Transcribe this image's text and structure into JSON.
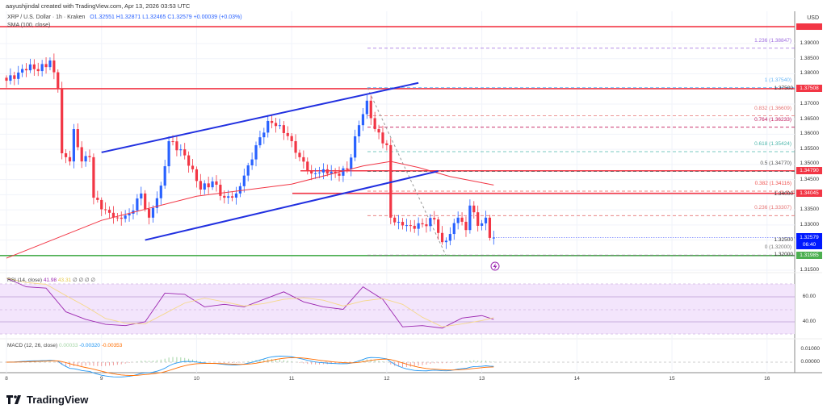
{
  "header": {
    "credit": "aayushjindal created with TradingView.com, Apr 13, 2026 03:53 UTC",
    "symbol_line": "XRP / U.S. Dollar · 1h · Kraken",
    "ohlc": "O1.32551  H1.32871  L1.32465  C1.32579  +0.00039 (+0.03%)",
    "sma_label": "SMA (100, close)"
  },
  "price_axis": {
    "currency": "USD",
    "ticks": [
      "1.39000",
      "1.38500",
      "1.38000",
      "1.37500",
      "1.37000",
      "1.36500",
      "1.36000",
      "1.35500",
      "1.35000",
      "1.34500",
      "1.34000",
      "1.33500",
      "1.33000",
      "1.32500",
      "1.32000",
      "1.31500"
    ],
    "tags": {
      "resistance_1": "1.37508",
      "resistance_2": "1.34790",
      "resistance_3": "1.34045",
      "support": "1.31985",
      "current_price": "1.32579",
      "countdown": "06:40"
    }
  },
  "time_axis": {
    "ticks": [
      "8",
      "9",
      "10",
      "11",
      "12",
      "13",
      "14",
      "15",
      "16"
    ]
  },
  "fib_levels": [
    {
      "label": "1.236 (1.38847)",
      "price": 1.38847,
      "color": "#9c6ade"
    },
    {
      "label": "1 (1.37540)",
      "price": 1.3754,
      "color": "#64b5f6"
    },
    {
      "label": "0.832 (1.36609)",
      "price": 1.36609,
      "color": "#e57373"
    },
    {
      "label": "0.764 (1.36233)",
      "price": 1.36233,
      "color": "#c2185b"
    },
    {
      "label": "0.618 (1.35424)",
      "price": 1.35424,
      "color": "#4db6ac"
    },
    {
      "label": "0.5 (1.34770)",
      "price": 1.3477,
      "color": "#555555"
    },
    {
      "label": "0.382 (1.34116)",
      "price": 1.34116,
      "color": "#ef5350"
    },
    {
      "label": "0.236 (1.33307)",
      "price": 1.33307,
      "color": "#e57373"
    },
    {
      "label": "0 (1.32000)",
      "price": 1.32,
      "color": "#777777"
    }
  ],
  "horizontal_lines": [
    {
      "price": 1.3956,
      "color": "#f23645"
    },
    {
      "price": 1.37508,
      "color": "#f23645"
    },
    {
      "price": 1.3479,
      "color": "#f23645"
    },
    {
      "price": 1.34045,
      "color": "#f23645"
    },
    {
      "price": 1.31985,
      "color": "#4caf50"
    }
  ],
  "rsi": {
    "label": "RSI (14, close)",
    "value": "41.98",
    "signal": "43.31",
    "extra": "∅ ∅ ∅ ∅",
    "ticks": [
      "60.00",
      "40.00"
    ],
    "values": [
      75,
      68,
      67,
      48,
      42,
      38,
      37,
      40,
      63,
      62,
      52,
      54,
      52,
      58,
      64,
      56,
      52,
      50,
      68,
      58,
      36,
      37,
      35,
      43,
      45,
      42
    ]
  },
  "macd": {
    "label": "MACD (12, 26, close)",
    "histogram": "0.00033",
    "macd": "-0.00320",
    "signal": "-0.00353",
    "ticks": [
      "0.01000",
      "0.00000"
    ]
  },
  "branding": {
    "name": "TradingView"
  },
  "colors": {
    "up": "#2962ff",
    "down": "#f23645",
    "sma": "#f23645",
    "channel": "#2130e0",
    "rsi": "#9c27b0",
    "macd": "#2196f3",
    "macd_signal": "#ff6d00"
  },
  "chart_data": {
    "type": "candlestick",
    "title": "XRP / U.S. Dollar · 1h · Kraken",
    "ylim": [
      1.313,
      1.398
    ],
    "x_range": [
      "Apr 8 00:00",
      "Apr 16 12:00"
    ],
    "close_anchors": [
      [
        "Apr 8 00:00",
        1.3777
      ],
      [
        "Apr 8 03:00",
        1.3804
      ],
      [
        "Apr 8 06:00",
        1.3831
      ],
      [
        "Apr 8 08:00",
        1.3809
      ],
      [
        "Apr 8 11:00",
        1.3844
      ],
      [
        "Apr 8 13:00",
        1.3751
      ],
      [
        "Apr 8 14:00",
        1.3537
      ],
      [
        "Apr 8 16:00",
        1.351
      ],
      [
        "Apr 8 17:00",
        1.3617
      ],
      [
        "Apr 8 19:00",
        1.351
      ],
      [
        "Apr 8 21:00",
        1.3524
      ],
      [
        "Apr 8 22:00",
        1.339
      ],
      [
        "Apr 9 01:00",
        1.335
      ],
      [
        "Apr 9 04:00",
        1.3324
      ],
      [
        "Apr 9 07:00",
        1.3337
      ],
      [
        "Apr 9 10:00",
        1.3404
      ],
      [
        "Apr 9 12:00",
        1.3324
      ],
      [
        "Apr 9 15:00",
        1.343
      ],
      [
        "Apr 9 17:00",
        1.3577
      ],
      [
        "Apr 9 20:00",
        1.355
      ],
      [
        "Apr 9 23:00",
        1.3484
      ],
      [
        "Apr 10 01:00",
        1.3417
      ],
      [
        "Apr 10 04:00",
        1.3444
      ],
      [
        "Apr 10 07:00",
        1.339
      ],
      [
        "Apr 10 10:00",
        1.3404
      ],
      [
        "Apr 10 13:00",
        1.3497
      ],
      [
        "Apr 10 16:00",
        1.359
      ],
      [
        "Apr 10 18:00",
        1.3644
      ],
      [
        "Apr 10 21:00",
        1.363
      ],
      [
        "Apr 11 00:00",
        1.3577
      ],
      [
        "Apr 11 02:00",
        1.3524
      ],
      [
        "Apr 11 05:00",
        1.347
      ],
      [
        "Apr 11 08:00",
        1.3484
      ],
      [
        "Apr 11 11:00",
        1.347
      ],
      [
        "Apr 11 14:00",
        1.3484
      ],
      [
        "Apr 11 17:00",
        1.363
      ],
      [
        "Apr 11 19:00",
        1.3711
      ],
      [
        "Apr 11 21:00",
        1.3617
      ],
      [
        "Apr 12 00:00",
        1.3564
      ],
      [
        "Apr 12 01:00",
        1.3324
      ],
      [
        "Apr 12 03:00",
        1.331
      ],
      [
        "Apr 12 06:00",
        1.3297
      ],
      [
        "Apr 12 09:00",
        1.3302
      ],
      [
        "Apr 12 12:00",
        1.3318
      ],
      [
        "Apr 12 14:00",
        1.3243
      ],
      [
        "Apr 12 16:00",
        1.327
      ],
      [
        "Apr 12 18:00",
        1.3324
      ],
      [
        "Apr 12 20:00",
        1.3283
      ],
      [
        "Apr 12 21:00",
        1.3364
      ],
      [
        "Apr 12 23:00",
        1.3297
      ],
      [
        "Apr 13 01:00",
        1.3324
      ],
      [
        "Apr 13 02:00",
        1.3257
      ],
      [
        "Apr 13 03:00",
        1.32579
      ]
    ],
    "sma_100_anchors": [
      [
        "Apr 8 00:00",
        1.319
      ],
      [
        "Apr 9 00:00",
        1.3315
      ],
      [
        "Apr 10 00:00",
        1.3395
      ],
      [
        "Apr 11 00:00",
        1.3435
      ],
      [
        "Apr 11 18:00",
        1.3495
      ],
      [
        "Apr 12 01:00",
        1.351
      ],
      [
        "Apr 12 08:00",
        1.349
      ],
      [
        "Apr 12 16:00",
        1.346
      ],
      [
        "Apr 13 03:00",
        1.3432
      ]
    ],
    "channel_upper": [
      [
        "Apr 9 00:00",
        1.354
      ],
      [
        "Apr 12 08:00",
        1.377
      ]
    ],
    "channel_lower": [
      [
        "Apr 9 11:00",
        1.325
      ],
      [
        "Apr 12 13:00",
        1.3478
      ]
    ]
  }
}
